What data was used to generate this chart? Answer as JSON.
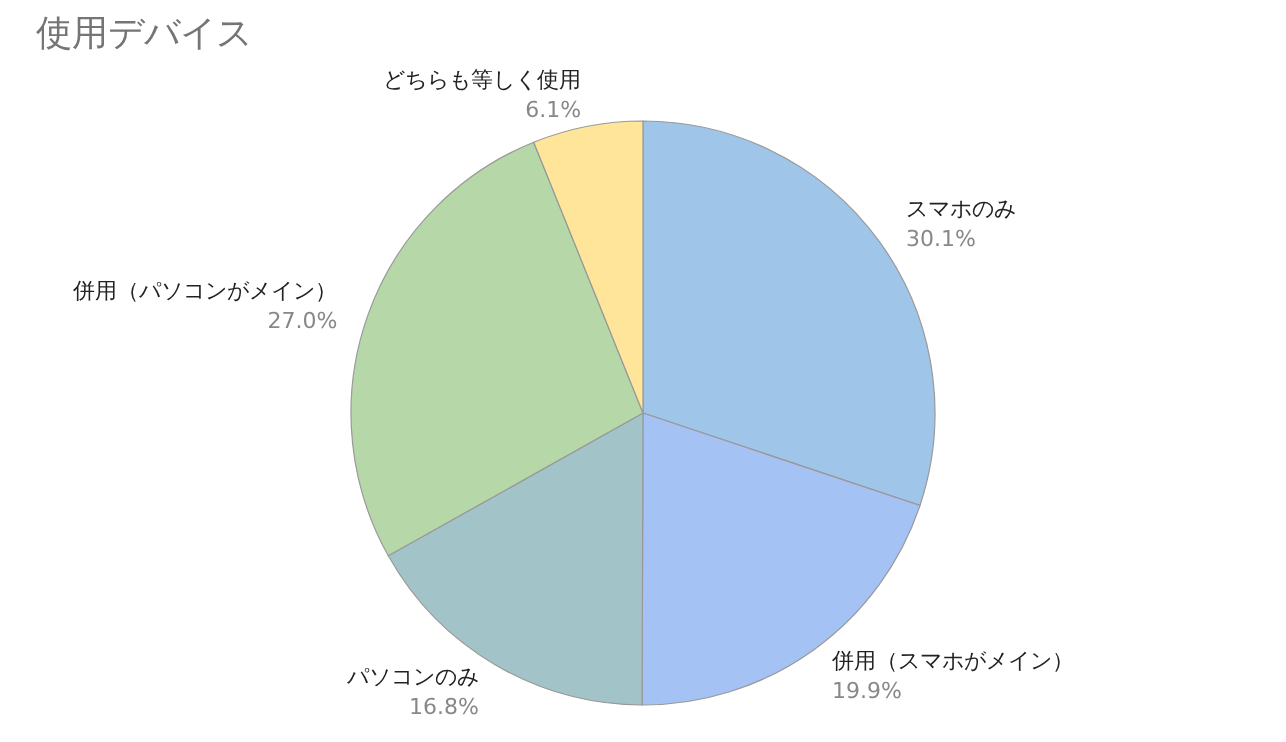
{
  "chart_data": {
    "type": "pie",
    "title": "使用デバイス",
    "categories": [
      "スマホのみ",
      "併用（スマホがメイン）",
      "パソコンのみ",
      "併用（パソコンがメイン）",
      "どちらも等しく使用"
    ],
    "values": [
      30.1,
      19.9,
      16.8,
      27.0,
      6.1
    ],
    "colors": [
      "#9fc5e8",
      "#a4c2f4",
      "#a2c4c9",
      "#b6d7a8",
      "#ffe599"
    ],
    "value_labels": [
      "30.1%",
      "19.9%",
      "16.8%",
      "27.0%",
      "6.1%"
    ],
    "legend": false
  }
}
